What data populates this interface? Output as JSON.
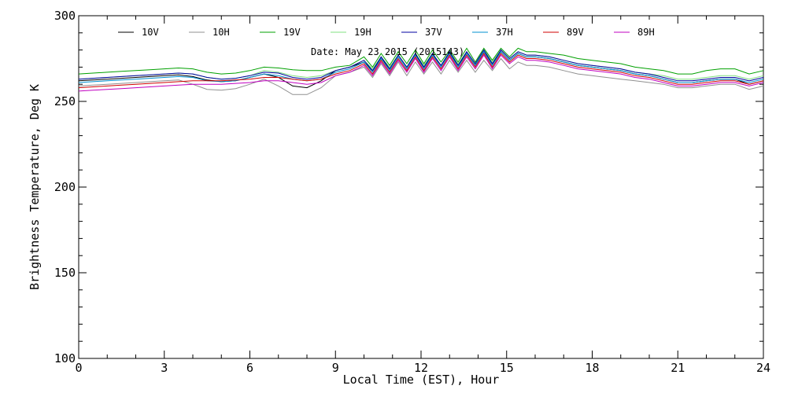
{
  "chart_data": {
    "type": "line",
    "xlabel": "Local Time (EST), Hour",
    "ylabel": "Brightness Temperature, Deg K",
    "annotation": "Date: May 23 2015 (2015143)",
    "xlim": [
      0,
      24
    ],
    "ylim": [
      100,
      300
    ],
    "xticks": [
      "0",
      "3",
      "6",
      "9",
      "12",
      "15",
      "18",
      "21",
      "24"
    ],
    "yticks": [
      "100",
      "150",
      "200",
      "250",
      "300"
    ],
    "grid": false,
    "legend_position": "top",
    "x": [
      0,
      0.5,
      1,
      1.5,
      2,
      2.5,
      3,
      3.5,
      4,
      4.5,
      5,
      5.5,
      6,
      6.5,
      7,
      7.5,
      8,
      8.5,
      9,
      9.5,
      10,
      10.3,
      10.6,
      10.9,
      11.2,
      11.5,
      11.8,
      12.1,
      12.4,
      12.7,
      13,
      13.3,
      13.6,
      13.9,
      14.2,
      14.5,
      14.8,
      15.1,
      15.4,
      15.7,
      16,
      16.5,
      17,
      17.5,
      18,
      18.5,
      19,
      19.5,
      20,
      20.5,
      21,
      21.5,
      22,
      22.5,
      23,
      23.5,
      24
    ],
    "series": [
      {
        "name": "10V",
        "color": "#000000",
        "values": [
          262,
          262.5,
          263,
          263.5,
          264,
          264.5,
          265,
          265.5,
          264.5,
          262.5,
          261.5,
          262,
          264,
          266,
          264,
          259,
          258,
          262,
          268,
          270,
          273,
          268,
          275,
          269,
          277,
          270,
          277,
          270,
          277,
          271,
          278,
          271,
          278,
          271,
          279,
          272,
          279,
          274,
          278,
          276,
          276,
          275,
          273,
          271,
          270,
          269,
          268,
          266,
          265,
          263,
          261,
          261,
          262,
          263,
          263,
          260,
          262
        ]
      },
      {
        "name": "10H",
        "color": "#909090",
        "values": [
          259,
          259.5,
          260,
          260.5,
          261,
          261.5,
          262,
          262.5,
          260,
          257,
          256.5,
          257.5,
          260,
          263,
          259,
          254,
          254,
          258,
          265,
          267,
          270,
          264,
          272,
          265,
          273,
          265,
          273,
          266,
          273,
          266,
          274,
          267,
          274,
          267,
          274,
          268,
          275,
          269,
          273,
          271,
          271,
          270,
          268,
          266,
          265,
          264,
          263,
          262,
          261,
          260,
          258,
          258,
          259,
          260,
          260,
          257,
          259
        ]
      },
      {
        "name": "19V",
        "color": "#00a000",
        "values": [
          266,
          266.5,
          267,
          267.5,
          268,
          268.5,
          269,
          269.5,
          269,
          267,
          266,
          266.5,
          268,
          270,
          269.5,
          268.5,
          268,
          268,
          270,
          271,
          276,
          270,
          278,
          271,
          279,
          272,
          280,
          272,
          280,
          273,
          280,
          273,
          281,
          273,
          281,
          274,
          281,
          276,
          281,
          279,
          279,
          278,
          277,
          275,
          274,
          273,
          272,
          270,
          269,
          268,
          266,
          266,
          268,
          269,
          269,
          266,
          268
        ]
      },
      {
        "name": "19H",
        "color": "#80e080",
        "values": [
          263,
          263.5,
          264,
          264.5,
          265,
          265.5,
          266,
          266.5,
          266,
          264,
          263,
          263.5,
          265,
          268,
          267,
          265,
          264,
          265,
          268,
          270,
          274,
          269,
          276,
          270,
          277,
          270,
          278,
          271,
          278,
          271,
          279,
          272,
          279,
          272,
          280,
          273,
          280,
          275,
          279,
          277,
          277,
          276,
          274,
          272,
          271,
          270,
          269,
          267,
          266,
          265,
          263,
          263,
          264,
          265,
          265,
          263,
          265
        ]
      },
      {
        "name": "37V",
        "color": "#0000a0",
        "values": [
          263,
          263.5,
          264,
          264.5,
          265,
          265.5,
          266,
          266.5,
          266,
          264,
          263,
          263.5,
          265,
          267,
          266.5,
          264,
          263,
          264,
          268,
          270,
          274,
          268,
          276,
          269,
          277,
          270,
          278,
          270,
          278,
          271,
          279,
          271,
          279,
          272,
          280,
          272,
          280,
          275,
          279,
          277,
          277,
          276,
          274,
          272,
          271,
          270,
          269,
          267,
          266,
          264,
          262,
          262,
          263,
          264,
          264,
          262,
          264
        ]
      },
      {
        "name": "37H",
        "color": "#0090d0",
        "values": [
          261,
          261.5,
          262,
          262.5,
          263,
          263.5,
          264,
          264.5,
          264,
          262,
          261.5,
          262,
          264,
          266,
          265,
          263,
          262,
          263,
          267,
          269,
          273,
          267,
          275,
          268,
          276,
          269,
          277,
          269,
          277,
          270,
          278,
          270,
          278,
          271,
          279,
          271,
          279,
          274,
          278,
          276,
          276,
          275,
          273,
          271,
          270,
          269,
          268,
          266,
          265,
          263,
          261,
          261,
          262,
          263,
          263,
          261,
          263
        ]
      },
      {
        "name": "89V",
        "color": "#d00000",
        "values": [
          258,
          258.5,
          259,
          259.5,
          260,
          260.5,
          261,
          261.5,
          262,
          262,
          262,
          262.5,
          263,
          264,
          264,
          263,
          262,
          263,
          266,
          268,
          272,
          266,
          274,
          267,
          275,
          268,
          276,
          268,
          276,
          269,
          277,
          269,
          277,
          270,
          278,
          270,
          278,
          273,
          277,
          275,
          275,
          274,
          272,
          270,
          269,
          268,
          267,
          265,
          264,
          262,
          260,
          260,
          261,
          262,
          262,
          260,
          262
        ]
      },
      {
        "name": "89H",
        "color": "#c000c0",
        "values": [
          256,
          256.5,
          257,
          257.5,
          258,
          258.5,
          259,
          259.5,
          260,
          260,
          260,
          260.5,
          261,
          262,
          262,
          261,
          260,
          261,
          265,
          267,
          271,
          265,
          273,
          266,
          274,
          267,
          275,
          267,
          275,
          268,
          276,
          268,
          276,
          269,
          277,
          269,
          277,
          272,
          276,
          274,
          274,
          273,
          271,
          269,
          268,
          267,
          266,
          264,
          263,
          261,
          259,
          259,
          260,
          261,
          261,
          259,
          261
        ]
      }
    ]
  }
}
